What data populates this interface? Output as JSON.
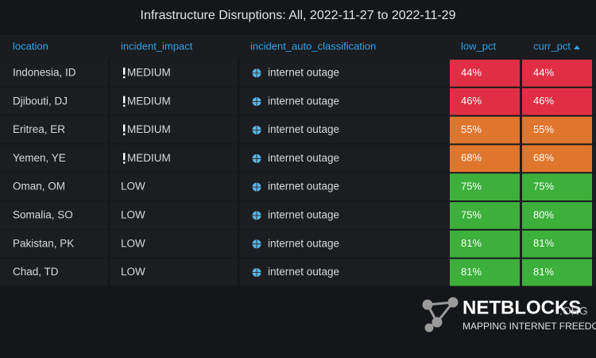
{
  "header": {
    "title": "Infrastructure Disruptions: All, 2022-11-27 to 2022-11-29"
  },
  "table": {
    "columns": [
      "location",
      "incident_impact",
      "incident_auto_classification",
      "low_pct",
      "curr_pct"
    ],
    "sorted_column": 4,
    "rows": [
      [
        "Indonesia, ID",
        "MEDIUM",
        "internet outage",
        "44%",
        "44%"
      ],
      [
        "Djibouti, DJ",
        "MEDIUM",
        "internet outage",
        "46%",
        "46%"
      ],
      [
        "Eritrea, ER",
        "MEDIUM",
        "internet outage",
        "55%",
        "55%"
      ],
      [
        "Yemen, YE",
        "MEDIUM",
        "internet outage",
        "68%",
        "68%"
      ],
      [
        "Oman, OM",
        "LOW",
        "internet outage",
        "75%",
        "75%"
      ],
      [
        "Somalia, SO",
        "LOW",
        "internet outage",
        "75%",
        "80%"
      ],
      [
        "Pakistan, PK",
        "LOW",
        "internet outage",
        "81%",
        "81%"
      ],
      [
        "Chad, TD",
        "LOW",
        "internet outage",
        "81%",
        "81%"
      ]
    ],
    "cell_colors": [
      [
        "#e02f44",
        "#e02f44"
      ],
      [
        "#e02f44",
        "#e02f44"
      ],
      [
        "#e0752d",
        "#e0752d"
      ],
      [
        "#e0752d",
        "#e0752d"
      ],
      [
        "#3cb03a",
        "#3cb03a"
      ],
      [
        "#3cb03a",
        "#3cb03a"
      ],
      [
        "#3cb03a",
        "#3cb03a"
      ],
      [
        "#3cb03a",
        "#3cb03a"
      ]
    ]
  },
  "watermark": {
    "brand": "NETBLOCKS",
    "brand_suffix": ".ORG",
    "tagline": "MAPPING INTERNET FREEDOM"
  }
}
